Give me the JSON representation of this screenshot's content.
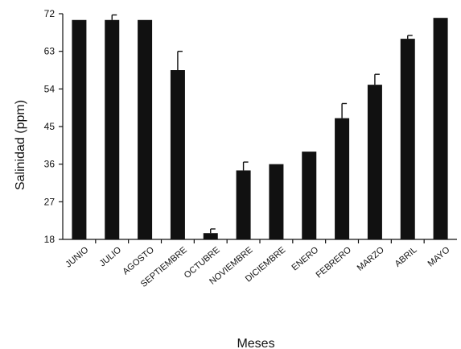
{
  "chart_data": {
    "type": "bar",
    "title": "",
    "xlabel": "Meses",
    "ylabel": "Salinidad  (ppm)",
    "ylim": [
      18,
      72
    ],
    "yticks": [
      "18",
      "27",
      "36",
      "45",
      "54",
      "63",
      "72"
    ],
    "grid": false,
    "legend": "none",
    "bar_color": "#111111",
    "categories": [
      "JUNIO",
      "JULIO",
      "AGOSTO",
      "SEPTIEMBRE",
      "OCTUBRE",
      "NOVIEMBRE",
      "DICIEMBRE",
      "ENERO",
      "FEBRERO",
      "MARZO",
      "ABRIL",
      "MAYO"
    ],
    "values": [
      70.5,
      70.5,
      70.5,
      58.5,
      19.5,
      34.5,
      36,
      39,
      47,
      55,
      66,
      71
    ],
    "error_upper": [
      0,
      1.2,
      0,
      4.5,
      1,
      2,
      0,
      0,
      3.5,
      2.5,
      0.8,
      0
    ]
  }
}
